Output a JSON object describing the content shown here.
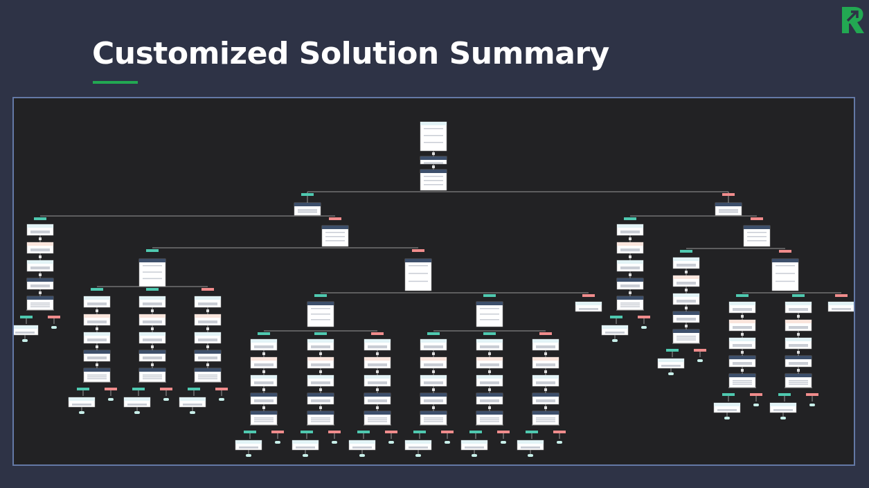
{
  "slide": {
    "title": "Customized Solution Summary",
    "accent_color": "#22a852",
    "background_color": "#2e3346",
    "logo": {
      "icon": "r-arrow-logo-icon",
      "color": "#22a852"
    }
  },
  "flowchart": {
    "description": "Decision tree workflow diagram with nodes connected by branches labeled true (green) and false (red)",
    "colors": {
      "canvas": "#222224",
      "border": "#6479a6",
      "node_body": "#ffffff",
      "node_header_dark": "#3d4f6b",
      "node_header_light": "#e2f3f6",
      "node_header_peach": "#fbe5dc",
      "branch_true": "#4fc9b0",
      "branch_false": "#f08c8c",
      "connector": "#9a9a9a",
      "terminal": "#c8f0ea"
    },
    "node_text_legible": false
  }
}
